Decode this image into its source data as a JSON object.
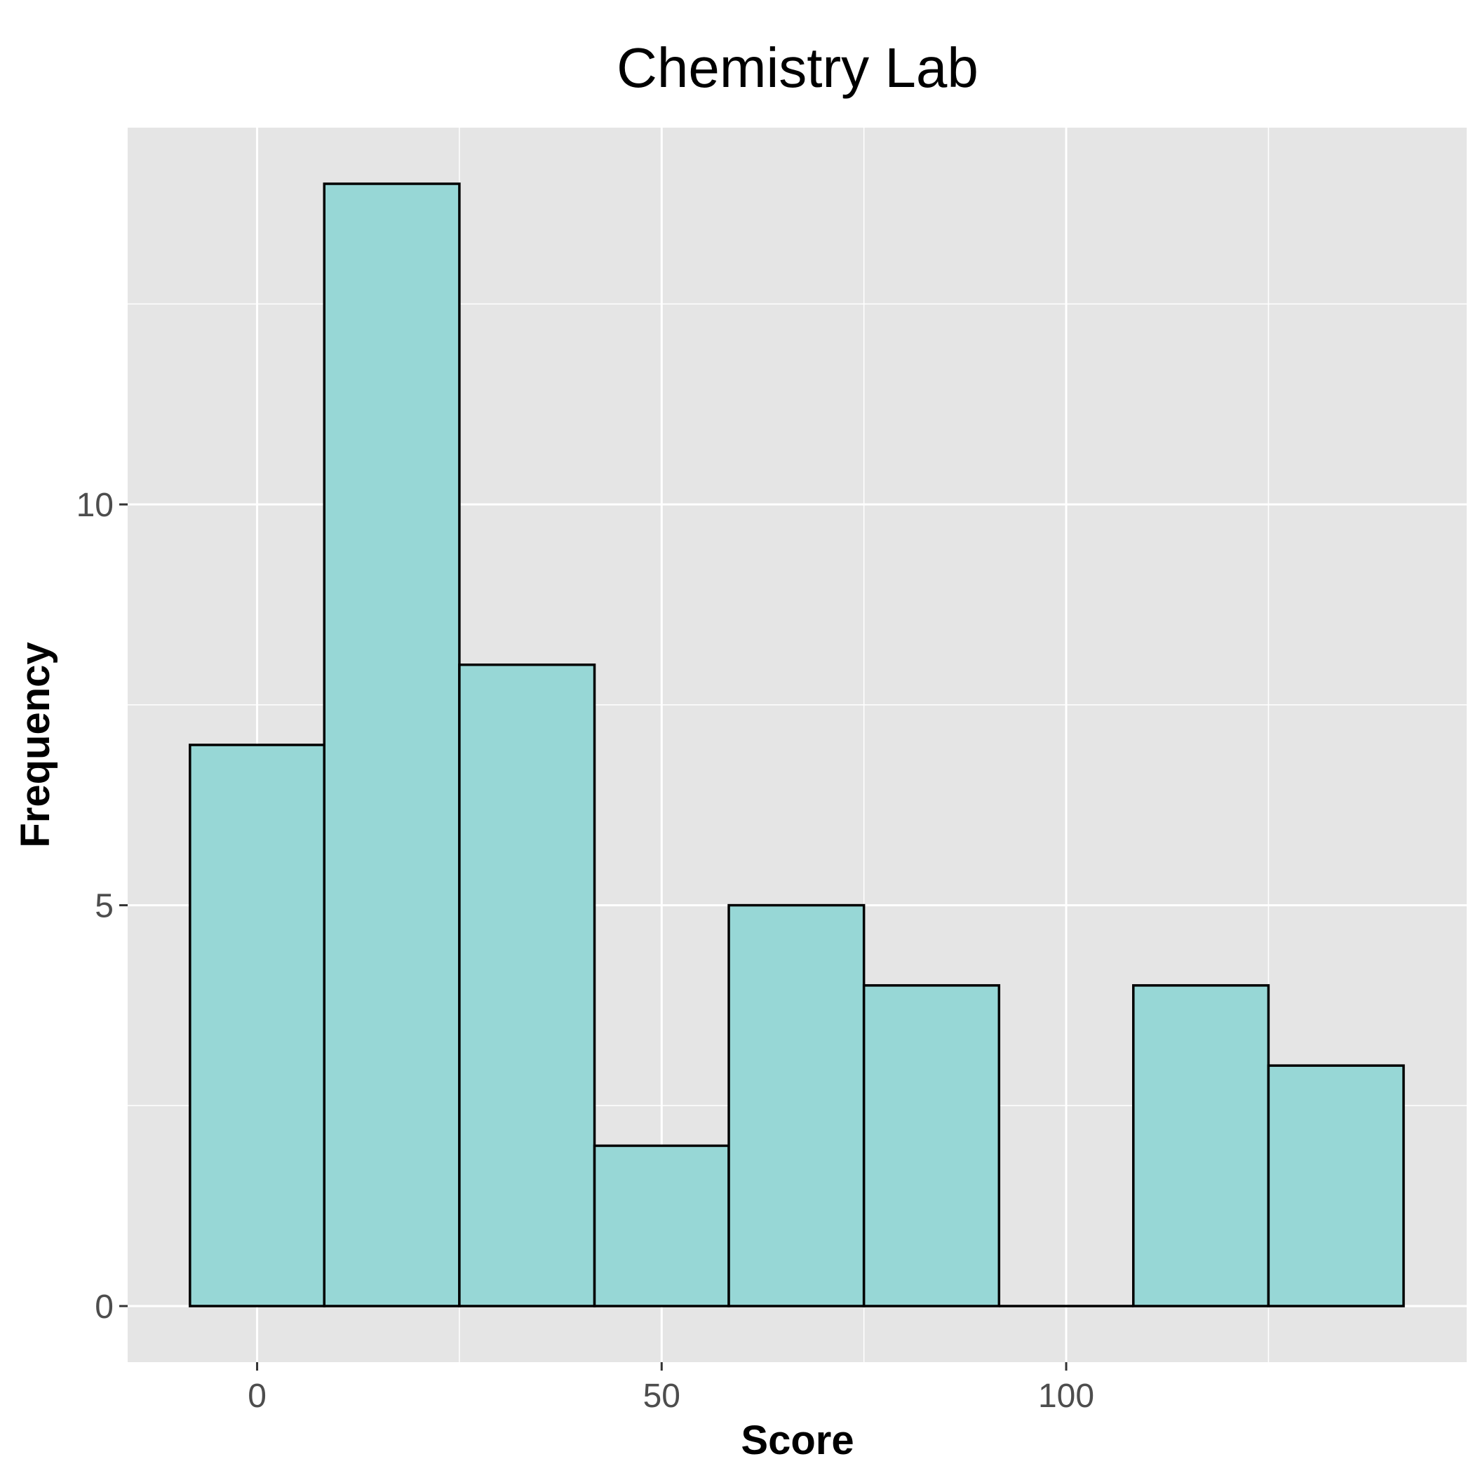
{
  "chart_data": {
    "type": "bar",
    "title": "Chemistry Lab",
    "xlabel": "Score",
    "ylabel": "Frequency",
    "bins": [
      {
        "x0": -8.3,
        "x1": 8.3,
        "count": 7
      },
      {
        "x0": 8.3,
        "x1": 25,
        "count": 14
      },
      {
        "x0": 25,
        "x1": 41.7,
        "count": 8
      },
      {
        "x0": 41.7,
        "x1": 58.3,
        "count": 2
      },
      {
        "x0": 58.3,
        "x1": 75,
        "count": 5
      },
      {
        "x0": 75,
        "x1": 91.7,
        "count": 4
      },
      {
        "x0": 91.7,
        "x1": 108.3,
        "count": 0
      },
      {
        "x0": 108.3,
        "x1": 125,
        "count": 4
      },
      {
        "x0": 125,
        "x1": 141.7,
        "count": 3
      }
    ],
    "xlim": [
      -16,
      149.5
    ],
    "ylim": [
      -0.7,
      14.7
    ],
    "x_ticks": [
      0,
      50,
      100
    ],
    "y_ticks": [
      0,
      5,
      10
    ],
    "x_minor_ticks": [
      25,
      75,
      125
    ],
    "y_minor_ticks": [
      2.5,
      7.5,
      12.5
    ],
    "grid": true,
    "colors": {
      "bar_fill": "#97d7d6",
      "bar_stroke": "#000000",
      "panel_background": "#e5e5e5",
      "grid": "#ffffff"
    }
  }
}
